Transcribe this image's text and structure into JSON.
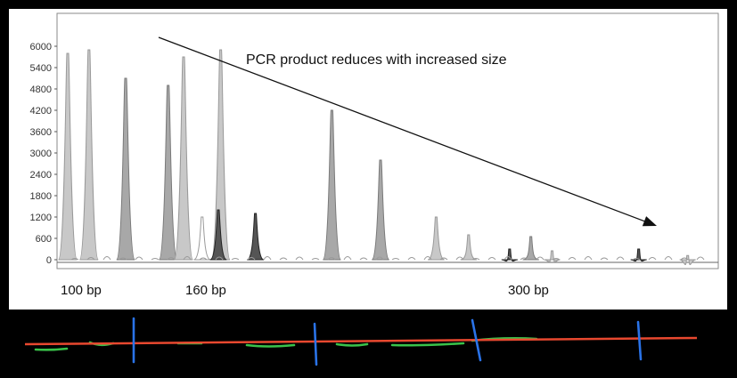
{
  "chart_data": {
    "type": "area",
    "title": "",
    "xlabel": "",
    "ylabel": "",
    "ylim": [
      0,
      6000
    ],
    "yticks": [
      0,
      600,
      1200,
      1800,
      2400,
      3000,
      3600,
      4200,
      4800,
      5400,
      6000
    ],
    "x_labels": [
      {
        "value": 100,
        "label": "100 bp"
      },
      {
        "value": 160,
        "label": "160 bp"
      },
      {
        "value": 300,
        "label": "300 bp"
      }
    ],
    "annotation": "PCR product reduces with increased size",
    "grid": false,
    "legend": "none",
    "peaks": [
      {
        "x": 100,
        "y": 5800,
        "shade": "light"
      },
      {
        "x": 111,
        "y": 5900,
        "shade": "light"
      },
      {
        "x": 130,
        "y": 5100,
        "shade": "mid"
      },
      {
        "x": 152,
        "y": 4900,
        "shade": "mid"
      },
      {
        "x": 160,
        "y": 5700,
        "shade": "light"
      },
      {
        "x": 176,
        "y": 5900,
        "shade": "light"
      },
      {
        "x": 168,
        "y": 1200,
        "shade": "outline"
      },
      {
        "x": 175,
        "y": 1400,
        "shade": "dark"
      },
      {
        "x": 191,
        "y": 1300,
        "shade": "dark"
      },
      {
        "x": 224,
        "y": 4200,
        "shade": "mid"
      },
      {
        "x": 245,
        "y": 2800,
        "shade": "mid"
      },
      {
        "x": 269,
        "y": 1200,
        "shade": "light"
      },
      {
        "x": 283,
        "y": 700,
        "shade": "light"
      },
      {
        "x": 301,
        "y": 300,
        "shade": "dark"
      },
      {
        "x": 314,
        "y": 650,
        "shade": "mid"
      },
      {
        "x": 327,
        "y": 250,
        "shade": "light"
      },
      {
        "x": 380,
        "y": 300,
        "shade": "dark"
      },
      {
        "x": 410,
        "y": 120,
        "shade": "light"
      }
    ]
  },
  "colors": {
    "background": "#000000",
    "plot_background": "#ffffff",
    "annotation_arrow": "#111111",
    "strip_red_line": "#e8482f",
    "strip_green_marks": "#39c24a",
    "strip_blue_ticks": "#2a73e8"
  }
}
